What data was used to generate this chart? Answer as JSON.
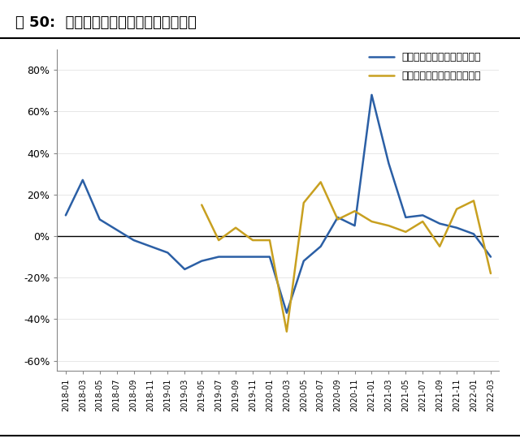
{
  "title": "图 50:  全媒体广告刊例花费同比变动情况",
  "legend1": "全媒体广告刊例花费同比增长",
  "legend2": "全媒体广告刊例花费环比增长",
  "color1": "#2B5FA5",
  "color2": "#C8A020",
  "ylim": [
    -0.65,
    0.9
  ],
  "yticks": [
    -0.6,
    -0.4,
    -0.2,
    0.0,
    0.2,
    0.4,
    0.6,
    0.8
  ],
  "labels": [
    "2018-01",
    "2018-03",
    "2018-05",
    "2018-07",
    "2018-09",
    "2018-11",
    "2019-01",
    "2019-03",
    "2019-05",
    "2019-07",
    "2019-09",
    "2019-11",
    "2020-01",
    "2020-03",
    "2020-05",
    "2020-07",
    "2020-09",
    "2020-11",
    "2021-01",
    "2021-03",
    "2021-05",
    "2021-07",
    "2021-09",
    "2021-11",
    "2022-01",
    "2022-03"
  ],
  "yoy": [
    0.1,
    0.27,
    0.08,
    0.03,
    -0.02,
    -0.05,
    -0.08,
    -0.16,
    -0.12,
    -0.1,
    -0.1,
    -0.1,
    -0.1,
    -0.37,
    -0.12,
    -0.05,
    0.09,
    0.05,
    0.68,
    0.35,
    0.09,
    0.1,
    0.06,
    0.04,
    0.01,
    -0.1
  ],
  "mom": [
    null,
    null,
    null,
    null,
    null,
    null,
    null,
    null,
    0.15,
    -0.02,
    0.04,
    -0.02,
    -0.02,
    -0.46,
    0.16,
    0.26,
    0.08,
    0.12,
    0.07,
    0.05,
    0.02,
    0.07,
    -0.05,
    0.13,
    0.17,
    -0.18
  ],
  "background": "#FFFFFF"
}
